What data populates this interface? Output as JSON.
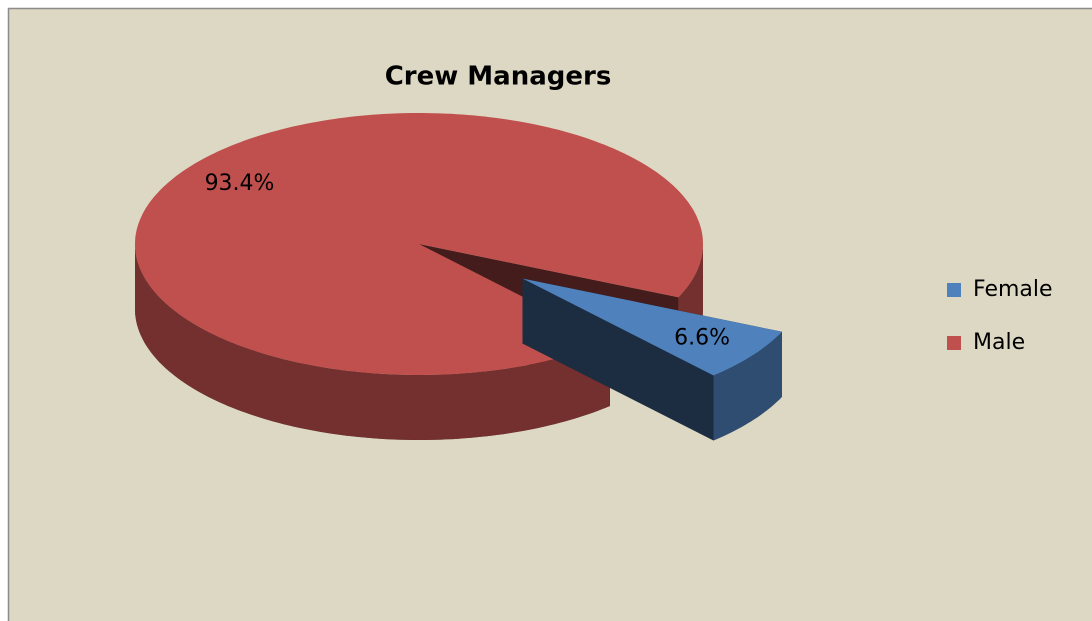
{
  "chart_data": {
    "type": "pie",
    "title": "Crew Managers",
    "categories": [
      "Female",
      "Male"
    ],
    "values": [
      6.6,
      93.4
    ],
    "value_labels": [
      "6.6%",
      "93.4%"
    ],
    "colors": [
      "#4f81bd",
      "#c0504d"
    ],
    "legend": "right"
  }
}
